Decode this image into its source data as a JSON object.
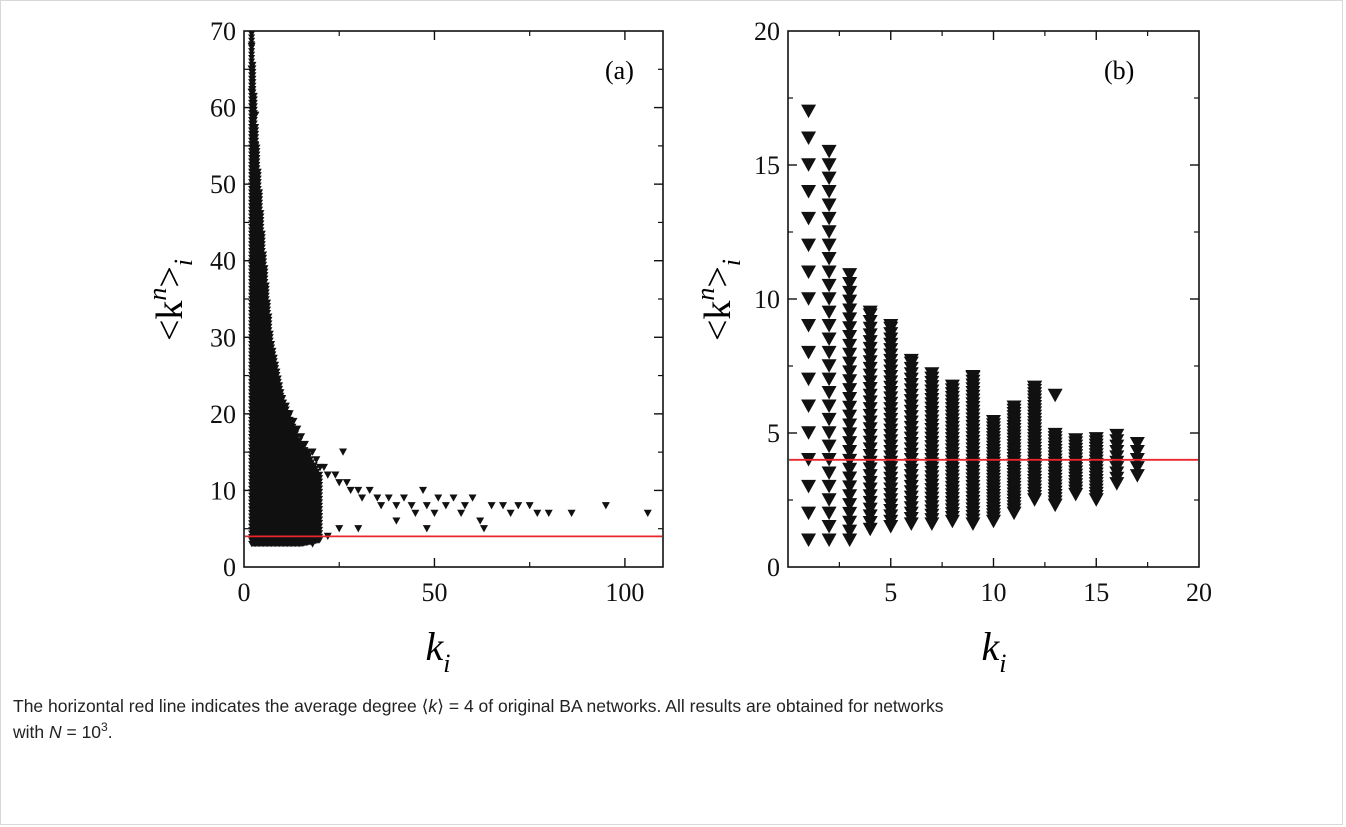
{
  "chart_data": [
    {
      "type": "scatter",
      "panel_label": "(a)",
      "xlabel": "k",
      "xlabel_sub": "i",
      "ylabel": "<k",
      "ylabel_sup": "n",
      "ylabel_end": ">",
      "ylabel_sub": "i",
      "xlim": [
        0,
        110
      ],
      "ylim": [
        0,
        70
      ],
      "x_ticks": [
        "0",
        "50",
        "100"
      ],
      "y_ticks": [
        "0",
        "10",
        "20",
        "30",
        "40",
        "50",
        "60",
        "70"
      ],
      "marker": "filled down-triangle",
      "marker_color": "#111111",
      "reference_line": {
        "y": 4,
        "color": "#e8262b"
      },
      "scattered_points": [
        [
          2,
          68
        ],
        [
          2,
          65
        ],
        [
          2,
          62
        ],
        [
          3,
          59
        ],
        [
          3,
          55
        ],
        [
          3,
          50
        ],
        [
          4,
          45
        ],
        [
          4,
          42
        ],
        [
          5,
          38
        ],
        [
          5,
          35
        ],
        [
          6,
          31
        ],
        [
          6,
          29
        ],
        [
          7,
          27
        ],
        [
          8,
          25
        ],
        [
          9,
          23
        ],
        [
          10,
          22
        ],
        [
          11,
          21
        ],
        [
          12,
          20
        ],
        [
          13,
          19
        ],
        [
          14,
          18
        ],
        [
          15,
          17
        ],
        [
          16,
          16
        ],
        [
          17,
          15
        ],
        [
          18,
          15
        ],
        [
          19,
          14
        ],
        [
          20,
          13
        ],
        [
          21,
          13
        ],
        [
          22,
          12
        ],
        [
          24,
          12
        ],
        [
          25,
          11
        ],
        [
          26,
          15
        ],
        [
          27,
          11
        ],
        [
          28,
          10
        ],
        [
          30,
          10
        ],
        [
          31,
          9
        ],
        [
          33,
          10
        ],
        [
          35,
          9
        ],
        [
          36,
          8
        ],
        [
          38,
          9
        ],
        [
          40,
          8
        ],
        [
          42,
          9
        ],
        [
          44,
          8
        ],
        [
          45,
          7
        ],
        [
          47,
          10
        ],
        [
          48,
          8
        ],
        [
          50,
          7
        ],
        [
          51,
          9
        ],
        [
          53,
          8
        ],
        [
          55,
          9
        ],
        [
          57,
          7
        ],
        [
          58,
          8
        ],
        [
          60,
          9
        ],
        [
          62,
          6
        ],
        [
          63,
          5
        ],
        [
          65,
          8
        ],
        [
          68,
          8
        ],
        [
          70,
          7
        ],
        [
          72,
          8
        ],
        [
          75,
          8
        ],
        [
          77,
          7
        ],
        [
          80,
          7
        ],
        [
          86,
          7
        ],
        [
          95,
          8
        ],
        [
          106,
          7
        ],
        [
          30,
          5
        ],
        [
          40,
          6
        ],
        [
          48,
          5
        ],
        [
          18,
          3
        ],
        [
          22,
          4
        ],
        [
          25,
          5
        ]
      ],
      "dense_region": {
        "from_k": 2,
        "to_k": 20,
        "min_envelope": [
          [
            2,
            3
          ],
          [
            5,
            3
          ],
          [
            10,
            3
          ],
          [
            15,
            3
          ],
          [
            20,
            3.5
          ]
        ],
        "max_envelope": [
          [
            2,
            70
          ],
          [
            3,
            58
          ],
          [
            5,
            42
          ],
          [
            7,
            30
          ],
          [
            10,
            22
          ],
          [
            14,
            17
          ],
          [
            20,
            12
          ]
        ]
      }
    },
    {
      "type": "scatter",
      "panel_label": "(b)",
      "xlabel": "k",
      "xlabel_sub": "i",
      "ylabel": "<k",
      "ylabel_sup": "n",
      "ylabel_end": ">",
      "ylabel_sub": "i",
      "xlim": [
        0,
        20
      ],
      "ylim": [
        0,
        20
      ],
      "x_ticks": [
        "5",
        "10",
        "15",
        "20"
      ],
      "y_ticks": [
        "0",
        "5",
        "10",
        "15",
        "20"
      ],
      "marker": "filled down-triangle",
      "marker_color": "#111111",
      "reference_line": {
        "y": 4,
        "color": "#e8262b"
      },
      "columns": [
        {
          "k": 1,
          "min": 1,
          "max": 17,
          "step": 1
        },
        {
          "k": 2,
          "min": 1,
          "max": 15.5,
          "step": 0.5
        },
        {
          "k": 3,
          "min": 1,
          "max": 11.2,
          "step": 0.33
        },
        {
          "k": 4,
          "min": 1.4,
          "max": 9.5,
          "step": 0.25
        },
        {
          "k": 5,
          "min": 1.5,
          "max": 9,
          "step": 0.2
        },
        {
          "k": 6,
          "min": 1.6,
          "max": 7.7,
          "step": 0.2
        },
        {
          "k": 7,
          "min": 1.6,
          "max": 7.3,
          "step": 0.16
        },
        {
          "k": 8,
          "min": 1.7,
          "max": 6.8,
          "step": 0.14
        },
        {
          "k": 9,
          "min": 1.6,
          "max": 7.1,
          "step": 0.14
        },
        {
          "k": 10,
          "min": 1.7,
          "max": 5.5,
          "step": 0.12
        },
        {
          "k": 11,
          "min": 2,
          "max": 6,
          "step": 0.12
        },
        {
          "k": 12,
          "min": 2.5,
          "max": 6.7,
          "step": 0.12
        },
        {
          "k": 13,
          "min": 2.3,
          "max": 5,
          "step": 0.12
        },
        {
          "k": 14,
          "min": 2.7,
          "max": 4.8,
          "step": 0.12
        },
        {
          "k": 15,
          "min": 2.5,
          "max": 4.8,
          "step": 0.12
        },
        {
          "k": 16,
          "min": 3.1,
          "max": 4.9,
          "step": 0.2
        },
        {
          "k": 17,
          "min": 3.4,
          "max": 4.8,
          "step": 0.3
        }
      ],
      "outliers": [
        [
          4,
          9.5
        ],
        [
          5,
          9
        ],
        [
          6,
          7.7
        ],
        [
          9,
          7.1
        ],
        [
          12,
          6.7
        ],
        [
          13,
          6.4
        ]
      ]
    }
  ],
  "caption": {
    "part1": "The horizontal red line indicates the average degree ",
    "langle": "⟨",
    "k": "k",
    "rangle": "⟩",
    "part2": " = 4 of original BA networks. All results are obtained for networks",
    "part3": "with ",
    "N": "N",
    "part4": " = 10",
    "exp": "3",
    "part5": "."
  }
}
